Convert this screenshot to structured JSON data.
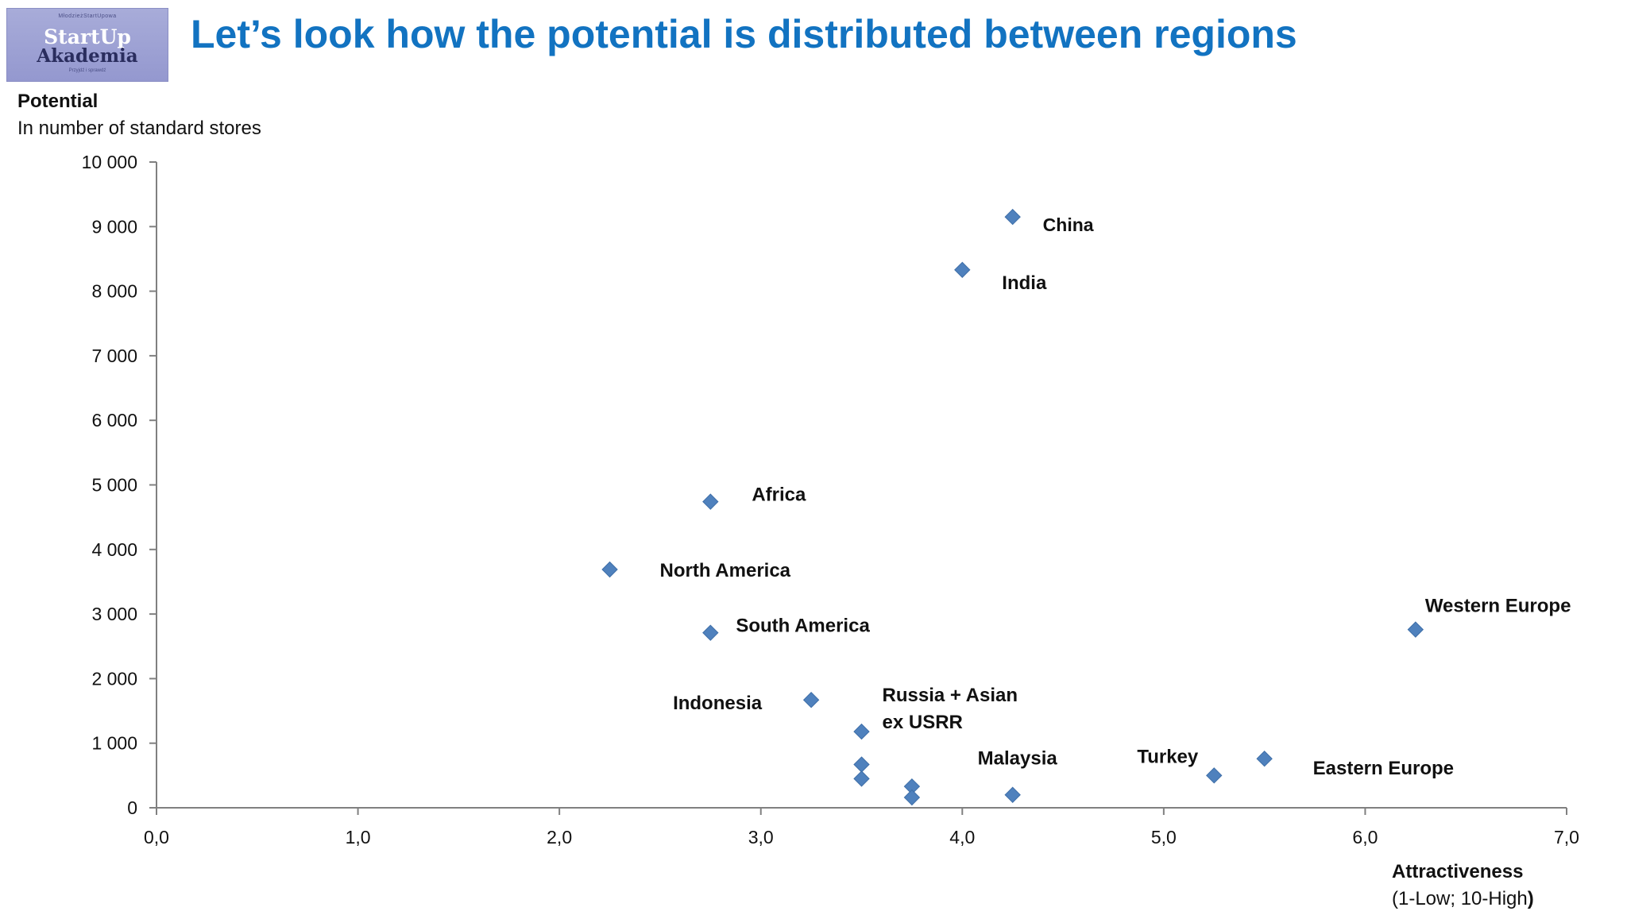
{
  "logo": {
    "top_text": "MłodzieżStartUpowa",
    "line1": "StartUp",
    "line2": "Akademia",
    "bottom_text": "Przyjdź i sprawdź"
  },
  "header": {
    "title": "Let’s look how the potential is distributed between regions"
  },
  "chart_data": {
    "type": "scatter",
    "title": "Let’s look how the potential is distributed between regions",
    "ylabel": "Potential",
    "ylabel_sub": "In number of standard stores",
    "xlabel": "Attractiveness",
    "xlabel_sub": "(1-Low; 10-High",
    "xlabel_sub_end": ")",
    "xlim": [
      0,
      7
    ],
    "ylim": [
      0,
      10000
    ],
    "xticks": [
      0,
      1,
      2,
      3,
      4,
      5,
      6,
      7
    ],
    "xtick_labels": [
      "0,0",
      "1,0",
      "2,0",
      "3,0",
      "4,0",
      "5,0",
      "6,0",
      "7,0"
    ],
    "yticks": [
      0,
      1000,
      2000,
      3000,
      4000,
      5000,
      6000,
      7000,
      8000,
      9000,
      10000
    ],
    "ytick_labels": [
      "0",
      "1 000",
      "2 000",
      "3 000",
      "4 000",
      "5 000",
      "6 000",
      "7 000",
      "8 000",
      "9 000",
      "10 000"
    ],
    "marker": "diamond",
    "marker_color": "#4f81bd",
    "points": [
      {
        "x": 4.25,
        "y": 9150,
        "label": "China"
      },
      {
        "x": 4.0,
        "y": 8330,
        "label": "India"
      },
      {
        "x": 2.75,
        "y": 4740,
        "label": "Africa"
      },
      {
        "x": 2.25,
        "y": 3690,
        "label": "North America"
      },
      {
        "x": 2.75,
        "y": 2710,
        "label": "South America"
      },
      {
        "x": 6.25,
        "y": 2760,
        "label": "Western Europe"
      },
      {
        "x": 3.25,
        "y": 1670,
        "label": "Indonesia"
      },
      {
        "x": 3.5,
        "y": 1180,
        "label": "Russia + Asian ex USRR"
      },
      {
        "x": 3.5,
        "y": 670,
        "label": ""
      },
      {
        "x": 3.5,
        "y": 450,
        "label": ""
      },
      {
        "x": 3.75,
        "y": 330,
        "label": ""
      },
      {
        "x": 3.75,
        "y": 160,
        "label": ""
      },
      {
        "x": 4.25,
        "y": 200,
        "label": "Malaysia"
      },
      {
        "x": 5.25,
        "y": 500,
        "label": "Turkey"
      },
      {
        "x": 5.5,
        "y": 760,
        "label": "Eastern Europe"
      }
    ],
    "label_lines": {
      "Russia + Asian ex USRR": [
        "Russia + Asian",
        "ex USRR"
      ]
    }
  }
}
